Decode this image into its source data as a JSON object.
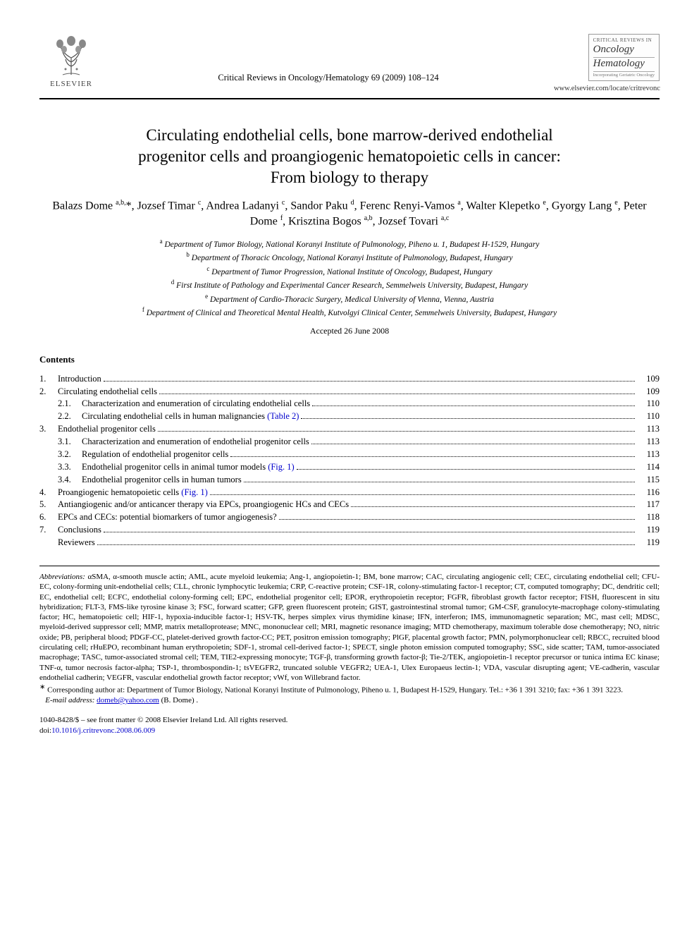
{
  "header": {
    "publisher_name": "ELSEVIER",
    "journal_ref": "Critical Reviews in Oncology/Hematology 69 (2009) 108–124",
    "cover_overline": "CRITICAL REVIEWS IN",
    "cover_title_line1": "Oncology",
    "cover_title_line2": "Hematology",
    "cover_subtitle": "Incorporating Geriatric Oncology",
    "locate_url": "www.elsevier.com/locate/critrevonc"
  },
  "title_lines": [
    "Circulating endothelial cells, bone marrow-derived endothelial",
    "progenitor cells and proangiogenic hematopoietic cells in cancer:",
    "From biology to therapy"
  ],
  "authors_html": "Balazs Dome <sup>a,b,</sup>*, Jozsef Timar <sup>c</sup>, Andrea Ladanyi <sup>c</sup>, Sandor Paku <sup>d</sup>, Ferenc Renyi-Vamos <sup>a</sup>, Walter Klepetko <sup>e</sup>, Gyorgy Lang <sup>e</sup>, Peter Dome <sup>f</sup>, Krisztina Bogos <sup>a,b</sup>, Jozsef Tovari <sup>a,c</sup>",
  "affiliations": [
    {
      "sup": "a",
      "text": "Department of Tumor Biology, National Koranyi Institute of Pulmonology, Piheno u. 1, Budapest H-1529, Hungary"
    },
    {
      "sup": "b",
      "text": "Department of Thoracic Oncology, National Koranyi Institute of Pulmonology, Budapest, Hungary"
    },
    {
      "sup": "c",
      "text": "Department of Tumor Progression, National Institute of Oncology, Budapest, Hungary"
    },
    {
      "sup": "d",
      "text": "First Institute of Pathology and Experimental Cancer Research, Semmelweis University, Budapest, Hungary"
    },
    {
      "sup": "e",
      "text": "Department of Cardio-Thoracic Surgery, Medical University of Vienna, Vienna, Austria"
    },
    {
      "sup": "f",
      "text": "Department of Clinical and Theoretical Mental Health, Kutvolgyi Clinical Center, Semmelweis University, Budapest, Hungary"
    }
  ],
  "accepted": "Accepted 26 June 2008",
  "contents_heading": "Contents",
  "toc": [
    {
      "num": "1.",
      "label": "Introduction",
      "page": "109",
      "indent": 0
    },
    {
      "num": "2.",
      "label": "Circulating endothelial cells",
      "page": "109",
      "indent": 0
    },
    {
      "num": "2.1.",
      "label": "Characterization and enumeration of circulating endothelial cells",
      "page": "110",
      "indent": 1
    },
    {
      "num": "2.2.",
      "label": "Circulating endothelial cells in human malignancies ",
      "link": "(Table 2)",
      "page": "110",
      "indent": 1
    },
    {
      "num": "3.",
      "label": "Endothelial progenitor cells",
      "page": "113",
      "indent": 0
    },
    {
      "num": "3.1.",
      "label": "Characterization and enumeration of endothelial progenitor cells",
      "page": "113",
      "indent": 1
    },
    {
      "num": "3.2.",
      "label": "Regulation of endothelial progenitor cells",
      "page": "113",
      "indent": 1
    },
    {
      "num": "3.3.",
      "label": "Endothelial progenitor cells in animal tumor models ",
      "link": "(Fig. 1)",
      "page": "114",
      "indent": 1
    },
    {
      "num": "3.4.",
      "label": "Endothelial progenitor cells in human tumors",
      "page": "115",
      "indent": 1
    },
    {
      "num": "4.",
      "label": "Proangiogenic hematopoietic cells ",
      "link": "(Fig. 1)",
      "page": "116",
      "indent": 0
    },
    {
      "num": "5.",
      "label": "Antiangiogenic and/or anticancer therapy via EPCs, proangiogenic HCs and CECs",
      "page": "117",
      "indent": 0
    },
    {
      "num": "6.",
      "label": "EPCs and CECs: potential biomarkers of tumor angiogenesis?",
      "page": "118",
      "indent": 0
    },
    {
      "num": "7.",
      "label": "Conclusions",
      "page": "119",
      "indent": 0
    },
    {
      "num": "",
      "label": "Reviewers",
      "page": "119",
      "indent": 0
    }
  ],
  "abbrev_label": "Abbreviations:",
  "abbrev_text": " αSMA, α-smooth muscle actin; AML, acute myeloid leukemia; Ang-1, angiopoietin-1; BM, bone marrow; CAC, circulating angiogenic cell; CEC, circulating endothelial cell; CFU-EC, colony-forming unit-endothelial cells; CLL, chronic lymphocytic leukemia; CRP, C-reactive protein; CSF-1R, colony-stimulating factor-1 receptor; CT, computed tomography; DC, dendritic cell; EC, endothelial cell; ECFC, endothelial colony-forming cell; EPC, endothelial progenitor cell; EPOR, erythropoietin receptor; FGFR, fibroblast growth factor receptor; FISH, fluorescent in situ hybridization; FLT-3, FMS-like tyrosine kinase 3; FSC, forward scatter; GFP, green fluorescent protein; GIST, gastrointestinal stromal tumor; GM-CSF, granulocyte-macrophage colony-stimulating factor; HC, hematopoietic cell; HIF-1, hypoxia-inducible factor-1; HSV-TK, herpes simplex virus thymidine kinase; IFN, interferon; IMS, immunomagnetic separation; MC, mast cell; MDSC, myeloid-derived suppressor cell; MMP, matrix metalloprotease; MNC, mononuclear cell; MRI, magnetic resonance imaging; MTD chemotherapy, maximum tolerable dose chemotherapy; NO, nitric oxide; PB, peripheral blood; PDGF-CC, platelet-derived growth factor-CC; PET, positron emission tomography; PlGF, placental growth factor; PMN, polymorphonuclear cell; RBCC, recruited blood circulating cell; rHuEPO, recombinant human erythropoietin; SDF-1, stromal cell-derived factor-1; SPECT, single photon emission computed tomography; SSC, side scatter; TAM, tumor-associated macrophage; TASC, tumor-associated stromal cell; TEM, TIE2-expressing monocyte; TGF-β, transforming growth factor-β; Tie-2/TEK, angiopoietin-1 receptor precursor or tunica intima EC kinase; TNF-α, tumor necrosis factor-alpha; TSP-1, thrombospondin-1; tsVEGFR2, truncated soluble VEGFR2; UEA-1, Ulex Europaeus lectin-1; VDA, vascular disrupting agent; VE-cadherin, vascular endothelial cadherin; VEGFR, vascular endothelial growth factor receptor; vWf, von Willebrand factor.",
  "corr_marker": "∗",
  "corr_text": " Corresponding author at: Department of Tumor Biology, National Koranyi Institute of Pulmonology, Piheno u. 1, Budapest H-1529, Hungary. Tel.: +36 1 391 3210; fax: +36 1 391 3223.",
  "email_label": "E-mail address:",
  "email_value": "domeb@yahoo.com",
  "email_suffix": " (B. Dome) .",
  "footer_line1": "1040-8428/$ – see front matter © 2008 Elsevier Ireland Ltd. All rights reserved.",
  "doi_prefix": "doi:",
  "doi_value": "10.1016/j.critrevonc.2008.06.009",
  "colors": {
    "text": "#000000",
    "link": "#0000cc",
    "rule": "#000000",
    "bg": "#ffffff"
  }
}
